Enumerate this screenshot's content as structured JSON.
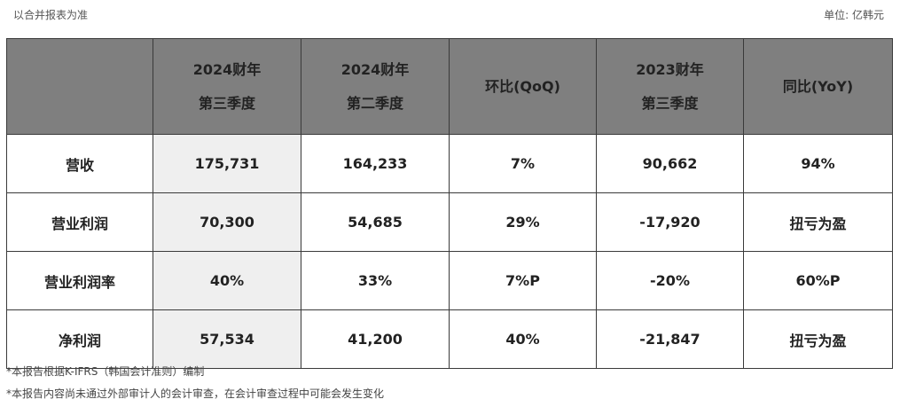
{
  "top_note": "以合并报表为准",
  "unit_note": "单位: 亿韩元",
  "table": {
    "headers": [
      {
        "line1": "",
        "line2": ""
      },
      {
        "line1": "2024财年",
        "line2": "第三季度"
      },
      {
        "line1": "2024财年",
        "line2": "第二季度"
      },
      {
        "line1": "环比(QoQ)",
        "line2": ""
      },
      {
        "line1": "2023财年",
        "line2": "第三季度"
      },
      {
        "line1": "同比(YoY)",
        "line2": ""
      }
    ],
    "rows": [
      {
        "label": "营收",
        "cells": [
          "175,731",
          "164,233",
          "7%",
          "90,662",
          "94%"
        ]
      },
      {
        "label": "营业利润",
        "cells": [
          "70,300",
          "54,685",
          "29%",
          "-17,920",
          "扭亏为盈"
        ]
      },
      {
        "label": "营业利润率",
        "cells": [
          "40%",
          "33%",
          "7%P",
          "-20%",
          "60%P"
        ]
      },
      {
        "label": "净利润",
        "cells": [
          "57,534",
          "41,200",
          "40%",
          "-21,847",
          "扭亏为盈"
        ]
      }
    ]
  },
  "footnotes": [
    "*本报告根据K-IFRS（韩国会计准则）编制",
    "*本报告内容尚未通过外部审计人的会计审查，在会计审查过程中可能会发生变化"
  ]
}
